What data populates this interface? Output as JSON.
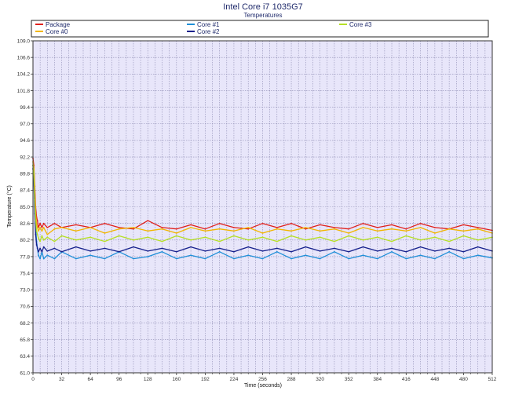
{
  "chart_data": {
    "type": "line",
    "title": "Intel Core i7 1035G7",
    "subtitle": "Temperatures",
    "xlabel": "Time (seconds)",
    "ylabel": "Temperature (°C)",
    "xlim": [
      0,
      512
    ],
    "ylim": [
      61.0,
      109.0
    ],
    "x_ticks": [
      0,
      32,
      64,
      96,
      128,
      160,
      192,
      224,
      256,
      288,
      320,
      352,
      384,
      416,
      448,
      480,
      512
    ],
    "y_ticks": [
      61.0,
      63.4,
      65.8,
      68.2,
      70.6,
      73.0,
      75.4,
      77.8,
      80.2,
      82.6,
      85.0,
      87.4,
      89.8,
      92.2,
      94.6,
      97.0,
      99.4,
      101.8,
      104.2,
      106.6,
      109.0
    ],
    "y_tick_labels": [
      "61.0",
      "63.4",
      "65.8",
      "68.2",
      "70.6",
      "73.0",
      "75.4",
      "77.8",
      "80.2",
      "82.6",
      "85.0",
      "87.4",
      "89.8",
      "92.2",
      "94.6",
      "97.0",
      "99.4",
      "101.8",
      "104.2",
      "106.6",
      "109.0"
    ],
    "grid": true,
    "legend_placement": "top",
    "x": [
      0,
      1,
      2,
      3,
      4,
      5,
      6,
      8,
      10,
      12,
      16,
      24,
      32,
      48,
      64,
      80,
      96,
      112,
      128,
      144,
      160,
      176,
      192,
      208,
      224,
      240,
      256,
      272,
      288,
      304,
      320,
      336,
      352,
      368,
      384,
      400,
      416,
      432,
      448,
      464,
      480,
      496,
      512
    ],
    "series": [
      {
        "name": "Package",
        "color": "#e0201b",
        "values": [
          92.0,
          91.0,
          88.0,
          85.0,
          83.5,
          83.0,
          82.0,
          82.6,
          82.0,
          82.6,
          82.0,
          82.6,
          82.0,
          82.4,
          82.0,
          82.6,
          82.0,
          81.8,
          83.0,
          82.0,
          81.8,
          82.4,
          81.8,
          82.6,
          82.0,
          81.8,
          82.6,
          82.0,
          82.6,
          81.8,
          82.4,
          82.0,
          81.8,
          82.6,
          82.0,
          82.4,
          81.8,
          82.6,
          82.0,
          81.8,
          82.4,
          82.0,
          81.6
        ]
      },
      {
        "name": "Core #1",
        "color": "#1e8fd8",
        "values": [
          91.0,
          90.0,
          85.0,
          82.0,
          80.0,
          79.0,
          78.0,
          77.5,
          78.5,
          77.5,
          78.0,
          77.5,
          78.5,
          77.5,
          78.0,
          77.5,
          78.5,
          77.5,
          77.8,
          78.5,
          77.5,
          78.0,
          77.5,
          78.5,
          77.5,
          78.0,
          77.5,
          78.5,
          77.5,
          78.0,
          77.5,
          78.5,
          77.5,
          78.0,
          77.5,
          78.5,
          77.5,
          78.0,
          77.5,
          78.5,
          77.5,
          78.0,
          77.6
        ]
      },
      {
        "name": "Core #0",
        "color": "#f2b600",
        "values": [
          91.5,
          90.5,
          87.0,
          84.0,
          82.5,
          82.0,
          81.5,
          82.0,
          81.5,
          82.0,
          81.0,
          81.8,
          82.0,
          81.5,
          82.0,
          81.2,
          81.8,
          82.0,
          81.5,
          81.8,
          81.2,
          82.0,
          81.5,
          81.8,
          81.5,
          82.0,
          81.2,
          81.8,
          81.5,
          82.0,
          81.5,
          81.8,
          81.2,
          82.0,
          81.5,
          81.8,
          81.5,
          82.0,
          81.2,
          81.8,
          81.5,
          81.8,
          81.2
        ]
      },
      {
        "name": "Core #2",
        "color": "#15208c",
        "values": [
          90.5,
          89.0,
          84.0,
          81.0,
          79.5,
          79.0,
          78.5,
          79.0,
          78.5,
          79.2,
          78.6,
          79.0,
          78.5,
          79.2,
          78.6,
          79.0,
          78.5,
          79.2,
          78.6,
          79.0,
          78.5,
          79.2,
          78.6,
          79.0,
          78.5,
          79.2,
          78.6,
          79.0,
          78.5,
          79.2,
          78.6,
          79.0,
          78.5,
          79.2,
          78.6,
          79.0,
          78.5,
          79.2,
          78.6,
          79.0,
          78.5,
          79.2,
          78.6
        ]
      },
      {
        "name": "Core #3",
        "color": "#b6e026",
        "values": [
          91.0,
          90.0,
          86.0,
          83.0,
          81.5,
          81.0,
          80.5,
          80.0,
          80.8,
          80.2,
          80.6,
          80.0,
          80.8,
          80.2,
          80.6,
          80.0,
          80.8,
          80.2,
          80.6,
          80.0,
          80.8,
          80.2,
          80.6,
          80.0,
          80.8,
          80.2,
          80.6,
          80.0,
          80.8,
          80.2,
          80.6,
          80.0,
          80.8,
          80.2,
          80.6,
          80.0,
          80.8,
          80.2,
          80.6,
          80.0,
          80.8,
          80.2,
          80.6
        ]
      }
    ],
    "colors": {
      "plot_background": "#e8e6fa",
      "grid": "#8f8db4",
      "frame": "#333333",
      "legend_border": "#222222",
      "title_color": "#1f2a6b"
    }
  }
}
